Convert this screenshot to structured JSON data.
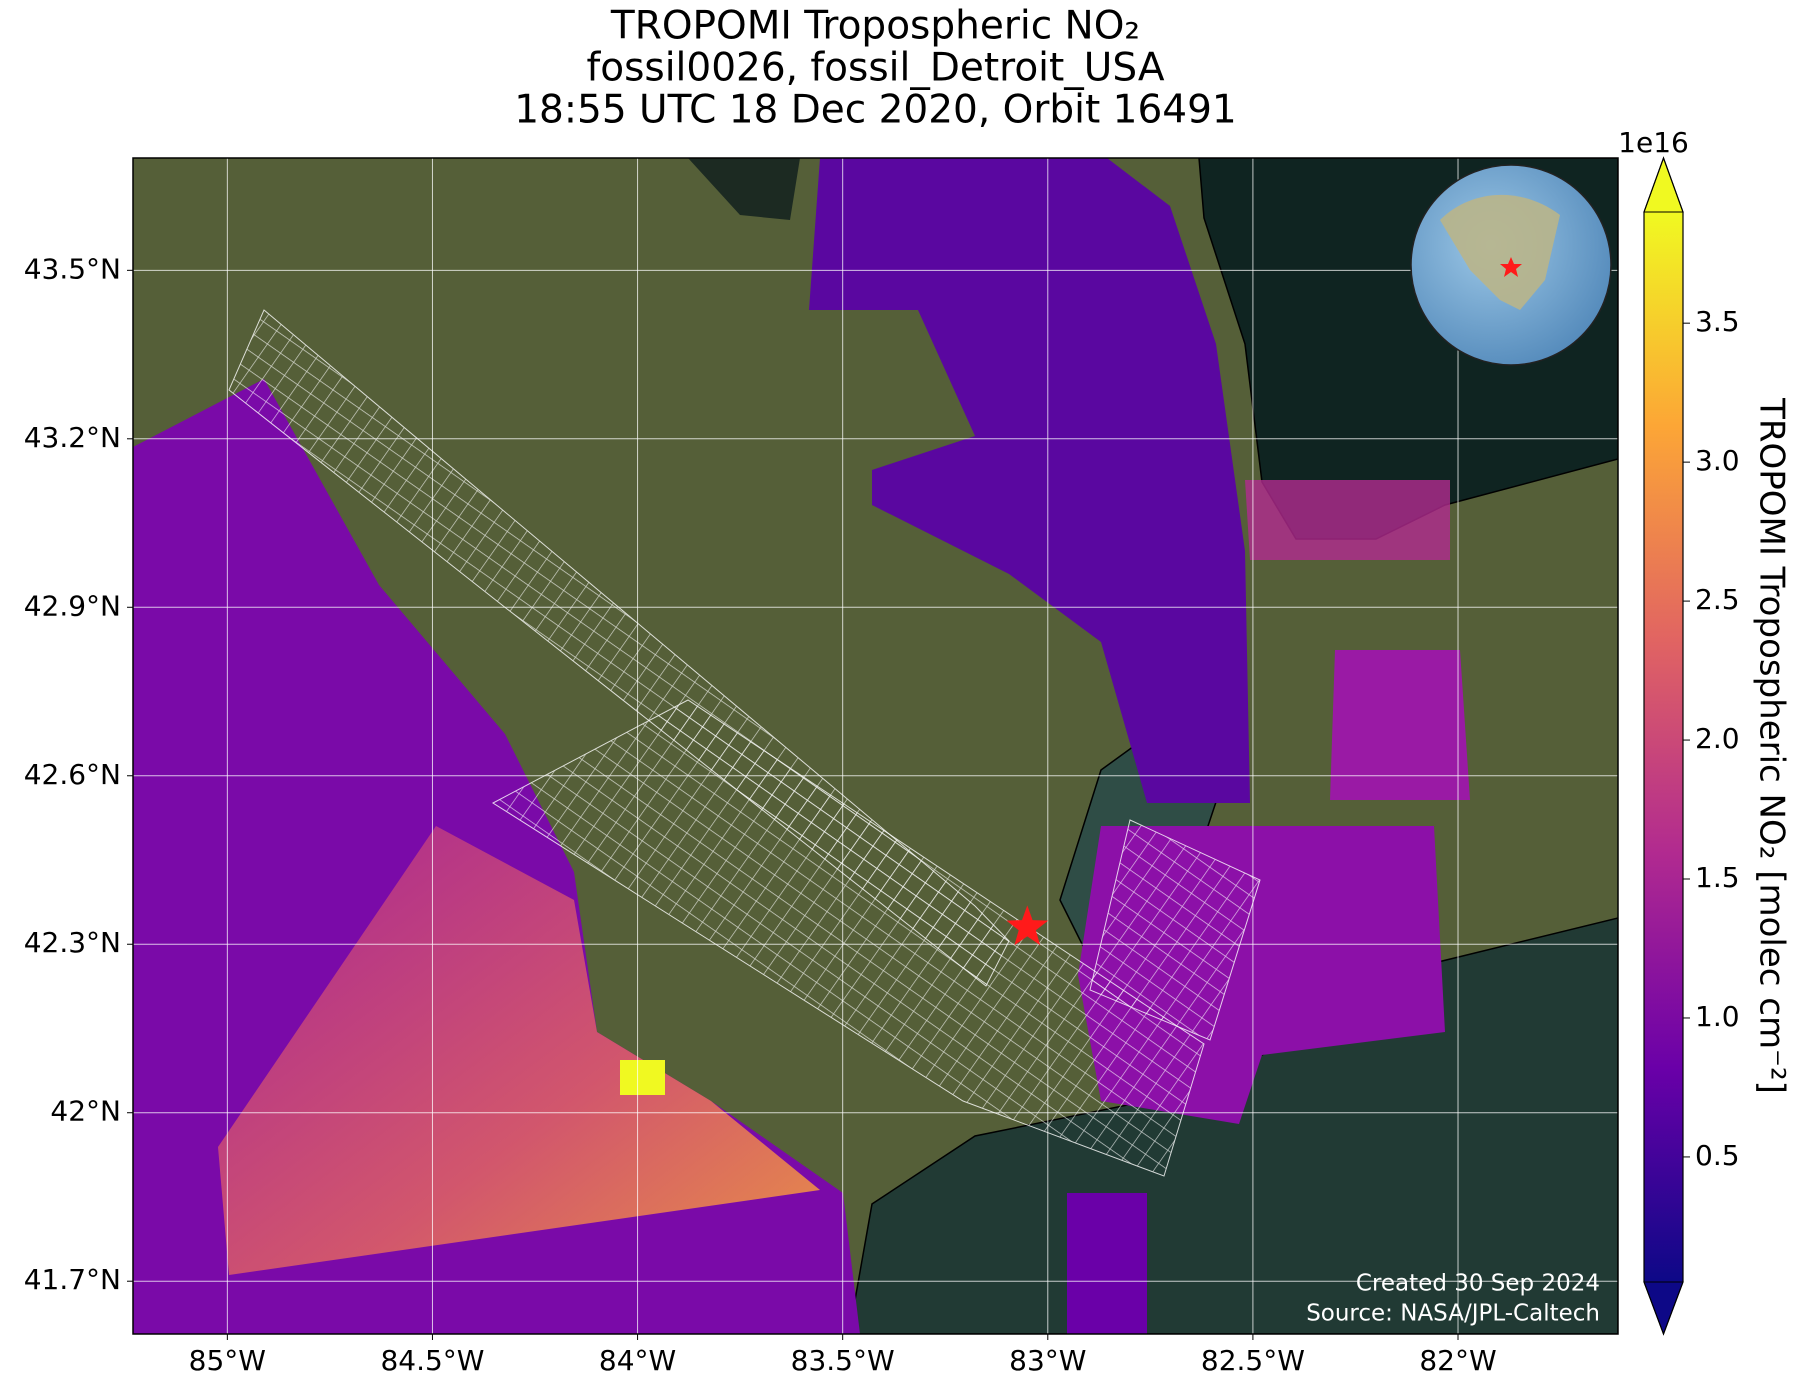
{
  "chart_data": {
    "type": "map",
    "title": [
      "TROPOMI Tropospheric NO₂",
      "fossil0026, fossil_Detroit_USA",
      "18:55 UTC 18 Dec 2020, Orbit 16491"
    ],
    "xlim": [
      -85.23,
      -81.61
    ],
    "ylim": [
      41.606,
      43.7
    ],
    "xticks": [
      {
        "value": -85,
        "label": "85°W"
      },
      {
        "value": -84.5,
        "label": "84.5°W"
      },
      {
        "value": -84,
        "label": "84°W"
      },
      {
        "value": -83.5,
        "label": "83.5°W"
      },
      {
        "value": -83,
        "label": "83°W"
      },
      {
        "value": -82.5,
        "label": "82.5°W"
      },
      {
        "value": -82,
        "label": "82°W"
      }
    ],
    "yticks": [
      {
        "value": 41.7,
        "label": "41.7°N"
      },
      {
        "value": 42,
        "label": "42°N"
      },
      {
        "value": 42.3,
        "label": "42.3°N"
      },
      {
        "value": 42.6,
        "label": "42.6°N"
      },
      {
        "value": 42.9,
        "label": "42.9°N"
      },
      {
        "value": 43.2,
        "label": "43.2°N"
      },
      {
        "value": 43.5,
        "label": "43.5°N"
      }
    ],
    "grid": true,
    "marker": {
      "lon": -83.05,
      "lat": 42.33,
      "color": "#ff1a1a"
    },
    "colorbar": {
      "label": "TROPOMI Tropospheric NO₂ [molec cm⁻²]",
      "scale_label": "1e16",
      "lim": [
        0.05,
        3.9
      ],
      "ticks": [
        0.5,
        {
          "value": 1,
          "label": "1.0"
        },
        1.5,
        {
          "value": 2,
          "label": "2.0"
        },
        2.5,
        {
          "value": 3,
          "label": "3.0"
        },
        3.5
      ],
      "colors": [
        "#0d0887",
        "#6a00a8",
        "#b12a90",
        "#e16462",
        "#fca636",
        "#f0f921"
      ]
    },
    "annotations": [
      "Created 30 Sep 2024",
      "Source: NASA/JPL-Caltech"
    ]
  }
}
